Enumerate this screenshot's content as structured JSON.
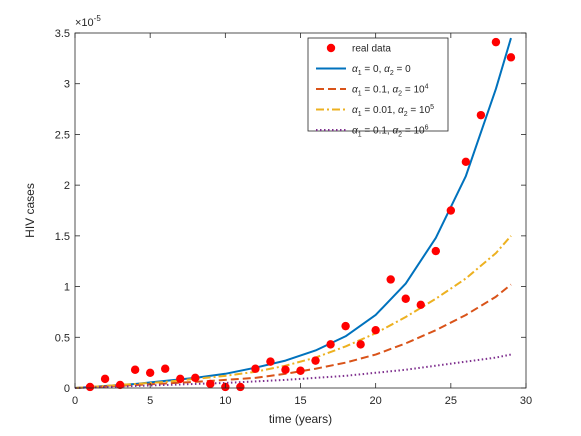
{
  "chart_data": {
    "type": "line",
    "xlabel": "time (years)",
    "ylabel": "HIV cases",
    "y_exponent_label": "×10",
    "y_exponent_power": "-5",
    "xlim": [
      0,
      30
    ],
    "ylim": [
      0,
      3.5
    ],
    "x_ticks": [
      0,
      5,
      10,
      15,
      20,
      25,
      30
    ],
    "y_ticks": [
      0,
      0.5,
      1,
      1.5,
      2,
      2.5,
      3,
      3.5
    ],
    "x_tick_labels": [
      "0",
      "5",
      "10",
      "15",
      "20",
      "25",
      "30"
    ],
    "y_tick_labels": [
      "0",
      "0.5",
      "1",
      "1.5",
      "2",
      "2.5",
      "3",
      "3.5"
    ],
    "grid": false,
    "legend_position": "top-right",
    "scatter": {
      "name": "real data",
      "color": "#ff0000",
      "x": [
        1,
        2,
        3,
        4,
        5,
        6,
        7,
        8,
        9,
        10,
        11,
        12,
        13,
        14,
        15,
        16,
        17,
        18,
        19,
        20,
        21,
        22,
        23,
        24,
        25,
        26,
        27,
        28,
        29
      ],
      "y": [
        0.01,
        0.09,
        0.03,
        0.18,
        0.15,
        0.19,
        0.09,
        0.1,
        0.04,
        0.01,
        0.01,
        0.19,
        0.26,
        0.18,
        0.17,
        0.27,
        0.43,
        0.61,
        0.43,
        0.57,
        1.07,
        0.88,
        0.82,
        1.35,
        1.75,
        2.23,
        2.69,
        3.41,
        3.26
      ]
    },
    "series": [
      {
        "name": "α1 = 0, α2 = 0",
        "legend": {
          "p1": "1",
          "v1": "0",
          "p2": "2",
          "v2": "0"
        },
        "color": "#0072bd",
        "dash": "solid",
        "x": [
          0,
          2,
          4,
          6,
          8,
          10,
          12,
          14,
          16,
          18,
          20,
          22,
          24,
          26,
          28,
          29
        ],
        "y": [
          0,
          0.02,
          0.04,
          0.07,
          0.1,
          0.14,
          0.2,
          0.27,
          0.37,
          0.51,
          0.72,
          1.03,
          1.48,
          2.09,
          2.95,
          3.45
        ]
      },
      {
        "name": "α1 = 0.1, α2 = 10^4",
        "legend": {
          "p1": "1",
          "v1": "0.1",
          "p2": "2",
          "v2": "10",
          "v2_exp": "4"
        },
        "color": "#d95319",
        "dash": "dashed",
        "x": [
          0,
          2,
          4,
          6,
          8,
          10,
          12,
          14,
          16,
          18,
          20,
          22,
          24,
          26,
          28,
          29
        ],
        "y": [
          0,
          0.015,
          0.03,
          0.045,
          0.06,
          0.08,
          0.1,
          0.14,
          0.19,
          0.25,
          0.33,
          0.44,
          0.57,
          0.72,
          0.9,
          1.02
        ]
      },
      {
        "name": "α1 = 0.01, α2 = 10^5",
        "legend": {
          "p1": "1",
          "v1": "0.01",
          "p2": "2",
          "v2": "10",
          "v2_exp": "5"
        },
        "color": "#edb120",
        "dash": "dashdot",
        "x": [
          0,
          2,
          4,
          6,
          8,
          10,
          12,
          14,
          16,
          18,
          20,
          22,
          24,
          26,
          28,
          29
        ],
        "y": [
          0,
          0.02,
          0.04,
          0.06,
          0.09,
          0.12,
          0.16,
          0.22,
          0.3,
          0.41,
          0.54,
          0.7,
          0.88,
          1.08,
          1.33,
          1.5
        ]
      },
      {
        "name": "α1 = 0.1, α2 = 10^6",
        "legend": {
          "p1": "1",
          "v1": "0.1",
          "p2": "2",
          "v2": "10",
          "v2_exp": "6"
        },
        "color": "#7e2f8e",
        "dash": "dotted",
        "x": [
          0,
          2,
          4,
          6,
          8,
          10,
          12,
          14,
          16,
          18,
          20,
          22,
          24,
          26,
          28,
          29
        ],
        "y": [
          0,
          0.01,
          0.02,
          0.03,
          0.04,
          0.05,
          0.065,
          0.08,
          0.1,
          0.12,
          0.15,
          0.18,
          0.22,
          0.26,
          0.3,
          0.33
        ]
      }
    ],
    "legend_alpha": "α",
    "legend_eq": "="
  }
}
